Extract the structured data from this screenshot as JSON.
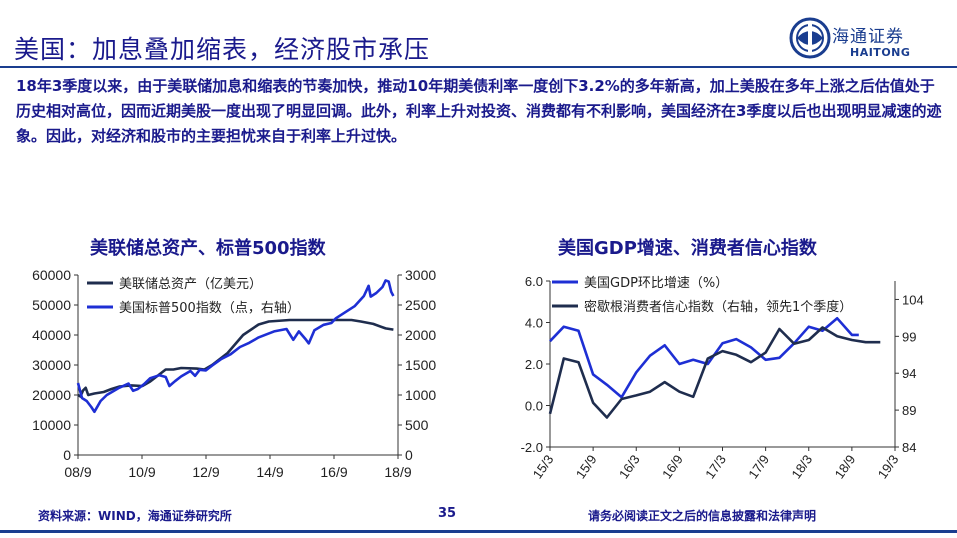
{
  "header": {
    "title": "美国：加息叠加缩表，经济股市承压",
    "logo_cn": "海通证券",
    "logo_en": "HAITONG"
  },
  "paragraph": "18年3季度以来，由于美联储加息和缩表的节奏加快，推动10年期美债利率一度创下3.2%的多年新高，加上美股在多年上涨之后估值处于历史相对高位，因而近期美股一度出现了明显回调。此外，利率上升对投资、消费都有不利影响，美国经济在3季度以后也出现明显减速的迹象。因此，对经济和股市的主要担忧来自于利率上升过快。",
  "footer": {
    "source": "资料来源：WIND，海通证券研究所",
    "page": "35",
    "disclaimer": "请务必阅读正文之后的信息披露和法律声明"
  },
  "colors": {
    "dark_navy": "#1f2d4e",
    "bright_blue": "#1e2fd4",
    "title_blue": "#1a1a8c"
  },
  "chart_data": [
    {
      "type": "line",
      "title": "美联储总资产、标普500指数",
      "x_ticks": [
        "08/9",
        "10/9",
        "12/9",
        "14/9",
        "16/9",
        "18/9"
      ],
      "x_range": [
        2008.67,
        2019.0
      ],
      "y_left": {
        "range": [
          0,
          60000
        ],
        "ticks": [
          0,
          10000,
          20000,
          30000,
          40000,
          50000,
          60000
        ]
      },
      "y_right": {
        "range": [
          0,
          3000
        ],
        "ticks": [
          0,
          500,
          1000,
          1500,
          2000,
          2500,
          3000
        ]
      },
      "legend_position": "top-left",
      "series": [
        {
          "name": "美联储总资产（亿美元）",
          "axis": "left",
          "color": "#1f2d4e",
          "points": [
            [
              2008.67,
              20000
            ],
            [
              2008.75,
              19500
            ],
            [
              2008.83,
              21500
            ],
            [
              2008.92,
              22400
            ],
            [
              2009.0,
              20000
            ],
            [
              2009.2,
              20500
            ],
            [
              2009.5,
              21000
            ],
            [
              2009.75,
              22000
            ],
            [
              2010.0,
              22800
            ],
            [
              2010.4,
              23200
            ],
            [
              2010.75,
              23000
            ],
            [
              2011.0,
              24500
            ],
            [
              2011.5,
              28500
            ],
            [
              2011.75,
              28500
            ],
            [
              2012.0,
              29000
            ],
            [
              2012.5,
              28800
            ],
            [
              2012.75,
              28500
            ],
            [
              2013.0,
              30000
            ],
            [
              2013.5,
              34000
            ],
            [
              2014.0,
              40000
            ],
            [
              2014.5,
              43500
            ],
            [
              2014.83,
              44500
            ],
            [
              2015.5,
              45000
            ],
            [
              2016.5,
              45000
            ],
            [
              2017.5,
              45000
            ],
            [
              2017.8,
              44500
            ],
            [
              2018.2,
              43700
            ],
            [
              2018.6,
              42200
            ],
            [
              2018.85,
              41800
            ]
          ]
        },
        {
          "name": "美国标普500指数（点，右轴）",
          "axis": "right",
          "color": "#1e2fd4",
          "points": [
            [
              2008.67,
              1200
            ],
            [
              2008.8,
              950
            ],
            [
              2008.95,
              900
            ],
            [
              2009.1,
              800
            ],
            [
              2009.2,
              720
            ],
            [
              2009.4,
              900
            ],
            [
              2009.6,
              1000
            ],
            [
              2009.8,
              1060
            ],
            [
              2010.0,
              1120
            ],
            [
              2010.3,
              1190
            ],
            [
              2010.45,
              1070
            ],
            [
              2010.6,
              1100
            ],
            [
              2010.8,
              1180
            ],
            [
              2011.0,
              1280
            ],
            [
              2011.3,
              1330
            ],
            [
              2011.5,
              1300
            ],
            [
              2011.62,
              1150
            ],
            [
              2011.8,
              1230
            ],
            [
              2012.0,
              1310
            ],
            [
              2012.3,
              1400
            ],
            [
              2012.45,
              1320
            ],
            [
              2012.6,
              1420
            ],
            [
              2012.8,
              1410
            ],
            [
              2013.0,
              1490
            ],
            [
              2013.3,
              1600
            ],
            [
              2013.6,
              1680
            ],
            [
              2013.9,
              1800
            ],
            [
              2014.2,
              1870
            ],
            [
              2014.5,
              1960
            ],
            [
              2014.8,
              2020
            ],
            [
              2015.0,
              2060
            ],
            [
              2015.4,
              2100
            ],
            [
              2015.62,
              1920
            ],
            [
              2015.8,
              2060
            ],
            [
              2016.0,
              1940
            ],
            [
              2016.12,
              1860
            ],
            [
              2016.3,
              2080
            ],
            [
              2016.6,
              2170
            ],
            [
              2016.85,
              2200
            ],
            [
              2017.0,
              2280
            ],
            [
              2017.3,
              2380
            ],
            [
              2017.6,
              2480
            ],
            [
              2017.9,
              2650
            ],
            [
              2018.05,
              2820
            ],
            [
              2018.12,
              2640
            ],
            [
              2018.3,
              2700
            ],
            [
              2018.5,
              2800
            ],
            [
              2018.6,
              2910
            ],
            [
              2018.7,
              2890
            ],
            [
              2018.78,
              2720
            ],
            [
              2018.85,
              2650
            ]
          ]
        }
      ]
    },
    {
      "type": "line",
      "title": "美国GDP增速、消费者信心指数",
      "x_ticks": [
        "15/3",
        "15/9",
        "16/3",
        "16/9",
        "17/3",
        "17/9",
        "18/3",
        "18/9",
        "19/3"
      ],
      "x_range": [
        2015.17,
        2019.17
      ],
      "y_left": {
        "range": [
          -2.0,
          6.0
        ],
        "ticks": [
          "-2.0",
          "0.0",
          "2.0",
          "4.0",
          "6.0"
        ]
      },
      "y_right": {
        "range": [
          84,
          106.5
        ],
        "ticks": [
          84,
          89,
          94,
          99,
          104
        ]
      },
      "legend_position": "top-left",
      "series": [
        {
          "name": "美国GDP环比增速（%）",
          "axis": "left",
          "color": "#1e2fd4",
          "points": [
            [
              2015.17,
              3.1
            ],
            [
              2015.33,
              3.8
            ],
            [
              2015.5,
              3.6
            ],
            [
              2015.67,
              1.5
            ],
            [
              2015.83,
              1.0
            ],
            [
              2016.0,
              0.4
            ],
            [
              2016.17,
              1.6
            ],
            [
              2016.33,
              2.4
            ],
            [
              2016.5,
              2.9
            ],
            [
              2016.67,
              2.0
            ],
            [
              2016.83,
              2.2
            ],
            [
              2017.0,
              2.0
            ],
            [
              2017.17,
              3.0
            ],
            [
              2017.33,
              3.2
            ],
            [
              2017.5,
              2.8
            ],
            [
              2017.67,
              2.2
            ],
            [
              2017.83,
              2.3
            ],
            [
              2018.0,
              3.0
            ],
            [
              2018.17,
              3.8
            ],
            [
              2018.33,
              3.6
            ],
            [
              2018.5,
              4.2
            ],
            [
              2018.67,
              3.4
            ],
            [
              2018.75,
              3.4
            ]
          ]
        },
        {
          "name": "密歇根消费者信心指数（右轴，领先1个季度）",
          "axis": "right",
          "color": "#1f2d4e",
          "points": [
            [
              2015.17,
              88.5
            ],
            [
              2015.33,
              96.0
            ],
            [
              2015.5,
              95.5
            ],
            [
              2015.67,
              90.0
            ],
            [
              2015.83,
              88.0
            ],
            [
              2016.0,
              90.5
            ],
            [
              2016.17,
              91.0
            ],
            [
              2016.33,
              91.5
            ],
            [
              2016.5,
              92.8
            ],
            [
              2016.67,
              91.5
            ],
            [
              2016.83,
              90.8
            ],
            [
              2017.0,
              96.0
            ],
            [
              2017.17,
              97.0
            ],
            [
              2017.33,
              96.5
            ],
            [
              2017.5,
              95.5
            ],
            [
              2017.67,
              96.8
            ],
            [
              2017.83,
              100.0
            ],
            [
              2018.0,
              98.0
            ],
            [
              2018.17,
              98.5
            ],
            [
              2018.33,
              100.2
            ],
            [
              2018.5,
              99.0
            ],
            [
              2018.67,
              98.5
            ],
            [
              2018.83,
              98.2
            ],
            [
              2019.0,
              98.2
            ]
          ]
        }
      ]
    }
  ]
}
